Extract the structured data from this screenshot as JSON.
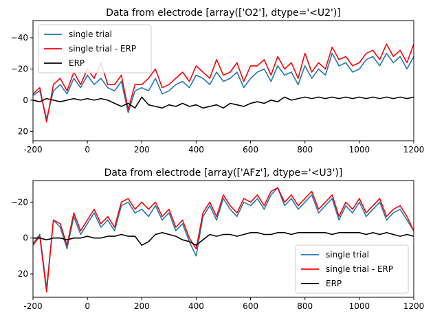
{
  "chart_data": [
    {
      "type": "line",
      "title": "Data from electrode [array(['O2'], dtype='<U2')]",
      "xlabel": "",
      "ylabel": "",
      "xlim": [
        -200,
        1200
      ],
      "ylim": [
        -51,
        26
      ],
      "y_inverted": true,
      "x_ticks": [
        "-200",
        "0",
        "200",
        "400",
        "600",
        "800",
        "1000",
        "1200"
      ],
      "y_ticks": [
        "−40",
        "−20",
        "0",
        "20"
      ],
      "legend_position": "upper-left",
      "grid": false,
      "series": [
        {
          "name": "single trial",
          "color": "#1f77b4",
          "x": [
            -200,
            -175,
            -150,
            -125,
            -100,
            -75,
            -50,
            -25,
            0,
            25,
            50,
            75,
            100,
            125,
            150,
            175,
            200,
            225,
            250,
            275,
            300,
            325,
            350,
            375,
            400,
            425,
            450,
            475,
            500,
            525,
            550,
            575,
            600,
            625,
            650,
            675,
            700,
            725,
            750,
            775,
            800,
            825,
            850,
            875,
            900,
            925,
            950,
            975,
            1000,
            1025,
            1050,
            1075,
            1100,
            1125,
            1150,
            1175,
            1200
          ],
          "values": [
            -3,
            -6,
            12,
            -6,
            -10,
            -4,
            -14,
            -8,
            -16,
            -10,
            -14,
            -8,
            -6,
            -12,
            8,
            -6,
            -8,
            -6,
            -14,
            -4,
            -6,
            -10,
            -12,
            -8,
            -16,
            -14,
            -10,
            -18,
            -12,
            -14,
            -18,
            -8,
            -14,
            -18,
            -20,
            -12,
            -22,
            -16,
            -18,
            -10,
            -22,
            -14,
            -20,
            -16,
            -30,
            -22,
            -24,
            -18,
            -20,
            -26,
            -28,
            -22,
            -30,
            -24,
            -28,
            -20,
            -28
          ]
        },
        {
          "name": "single trial - ERP",
          "color": "#ff0000",
          "x": [
            -200,
            -175,
            -150,
            -125,
            -100,
            -75,
            -50,
            -25,
            0,
            25,
            50,
            75,
            100,
            125,
            150,
            175,
            200,
            225,
            250,
            275,
            300,
            325,
            350,
            375,
            400,
            425,
            450,
            475,
            500,
            525,
            550,
            575,
            600,
            625,
            650,
            675,
            700,
            725,
            750,
            775,
            800,
            825,
            850,
            875,
            900,
            925,
            950,
            975,
            1000,
            1025,
            1050,
            1075,
            1100,
            1125,
            1150,
            1175,
            1200
          ],
          "values": [
            -4,
            -8,
            14,
            -10,
            -14,
            -6,
            -18,
            -10,
            -20,
            -14,
            -24,
            -10,
            -10,
            -16,
            6,
            -10,
            -10,
            -14,
            -20,
            -8,
            -10,
            -14,
            -18,
            -12,
            -22,
            -18,
            -14,
            -26,
            -16,
            -18,
            -24,
            -12,
            -22,
            -22,
            -26,
            -16,
            -28,
            -20,
            -24,
            -14,
            -30,
            -18,
            -24,
            -20,
            -34,
            -26,
            -28,
            -22,
            -24,
            -30,
            -32,
            -26,
            -36,
            -28,
            -32,
            -24,
            -36
          ]
        },
        {
          "name": "ERP",
          "color": "#000000",
          "x": [
            -200,
            -175,
            -150,
            -125,
            -100,
            -75,
            -50,
            -25,
            0,
            25,
            50,
            75,
            100,
            125,
            150,
            175,
            200,
            225,
            250,
            275,
            300,
            325,
            350,
            375,
            400,
            425,
            450,
            475,
            500,
            525,
            550,
            575,
            600,
            625,
            650,
            675,
            700,
            725,
            750,
            775,
            800,
            825,
            850,
            875,
            900,
            925,
            950,
            975,
            1000,
            1025,
            1050,
            1075,
            1100,
            1125,
            1150,
            1175,
            1200
          ],
          "values": [
            0,
            1,
            -1,
            0,
            1,
            0,
            -1,
            0,
            -1,
            0,
            -1,
            0,
            2,
            4,
            2,
            5,
            -2,
            3,
            4,
            5,
            3,
            4,
            2,
            4,
            3,
            5,
            4,
            3,
            5,
            2,
            3,
            4,
            2,
            1,
            2,
            0,
            1,
            -2,
            0,
            -1,
            -2,
            -1,
            -2,
            -1,
            -2,
            -1,
            -2,
            -1,
            -2,
            -1,
            -2,
            -1,
            -2,
            -1,
            -2,
            -1,
            -2
          ]
        }
      ]
    },
    {
      "type": "line",
      "title": "Data from electrode [array(['AFz'], dtype='<U3')]",
      "xlabel": "",
      "ylabel": "",
      "xlim": [
        -200,
        1200
      ],
      "ylim": [
        -32,
        33
      ],
      "y_inverted": true,
      "x_ticks": [
        "-200",
        "0",
        "200",
        "400",
        "600",
        "800",
        "1000",
        "1200"
      ],
      "y_ticks": [
        "−20",
        "0",
        "20"
      ],
      "legend_position": "lower-right",
      "grid": false,
      "series": [
        {
          "name": "single trial",
          "color": "#1f77b4",
          "x": [
            -200,
            -175,
            -150,
            -125,
            -100,
            -75,
            -50,
            -25,
            0,
            25,
            50,
            75,
            100,
            125,
            150,
            175,
            200,
            225,
            250,
            275,
            300,
            325,
            350,
            375,
            400,
            425,
            450,
            475,
            500,
            525,
            550,
            575,
            600,
            625,
            650,
            675,
            700,
            725,
            750,
            775,
            800,
            825,
            850,
            875,
            900,
            925,
            950,
            975,
            1000,
            1025,
            1050,
            1075,
            1100,
            1125,
            1150,
            1175,
            1200
          ],
          "values": [
            3,
            -2,
            28,
            -10,
            -6,
            6,
            -12,
            -2,
            -8,
            -14,
            -6,
            -10,
            -4,
            -18,
            -20,
            -14,
            -16,
            -12,
            -18,
            -10,
            -14,
            -4,
            -8,
            2,
            10,
            -12,
            -18,
            -10,
            -22,
            -16,
            -12,
            -20,
            -18,
            -22,
            -16,
            -24,
            -28,
            -18,
            -22,
            -16,
            -20,
            -24,
            -14,
            -18,
            -22,
            -10,
            -18,
            -14,
            -20,
            -12,
            -16,
            -20,
            -10,
            -14,
            -16,
            -10,
            -4
          ]
        },
        {
          "name": "single trial - ERP",
          "color": "#ff0000",
          "x": [
            -200,
            -175,
            -150,
            -125,
            -100,
            -75,
            -50,
            -25,
            0,
            25,
            50,
            75,
            100,
            125,
            150,
            175,
            200,
            225,
            250,
            275,
            300,
            325,
            350,
            375,
            400,
            425,
            450,
            475,
            500,
            525,
            550,
            575,
            600,
            625,
            650,
            675,
            700,
            725,
            750,
            775,
            800,
            825,
            850,
            875,
            900,
            925,
            950,
            975,
            1000,
            1025,
            1050,
            1075,
            1100,
            1125,
            1150,
            1175,
            1200
          ],
          "values": [
            4,
            -1,
            30,
            -10,
            -8,
            4,
            -14,
            -4,
            -10,
            -16,
            -8,
            -12,
            -6,
            -20,
            -22,
            -16,
            -20,
            -16,
            -20,
            -12,
            -16,
            -6,
            -10,
            0,
            6,
            -14,
            -20,
            -12,
            -24,
            -18,
            -14,
            -22,
            -20,
            -24,
            -18,
            -26,
            -28,
            -20,
            -24,
            -18,
            -22,
            -26,
            -16,
            -20,
            -24,
            -12,
            -20,
            -16,
            -22,
            -14,
            -18,
            -22,
            -12,
            -16,
            -18,
            -12,
            -4
          ]
        },
        {
          "name": "ERP",
          "color": "#000000",
          "x": [
            -200,
            -175,
            -150,
            -125,
            -100,
            -75,
            -50,
            -25,
            0,
            25,
            50,
            75,
            100,
            125,
            150,
            175,
            200,
            225,
            250,
            275,
            300,
            325,
            350,
            375,
            400,
            425,
            450,
            475,
            500,
            525,
            550,
            575,
            600,
            625,
            650,
            675,
            700,
            725,
            750,
            775,
            800,
            825,
            850,
            875,
            900,
            925,
            950,
            975,
            1000,
            1025,
            1050,
            1075,
            1100,
            1125,
            1150,
            1175,
            1200
          ],
          "values": [
            0,
            0,
            1,
            0,
            0,
            1,
            0,
            0,
            -1,
            0,
            0,
            -1,
            -1,
            -2,
            -1,
            -1,
            4,
            2,
            -2,
            -3,
            -2,
            -1,
            1,
            2,
            4,
            1,
            -2,
            -1,
            -2,
            -2,
            -1,
            -2,
            -3,
            -3,
            -2,
            -2,
            -3,
            -3,
            -2,
            -3,
            -3,
            -3,
            -3,
            -3,
            -2,
            -3,
            -3,
            -3,
            -3,
            -2,
            -3,
            -2,
            -3,
            -2,
            -1,
            -2,
            -1
          ]
        }
      ]
    }
  ]
}
